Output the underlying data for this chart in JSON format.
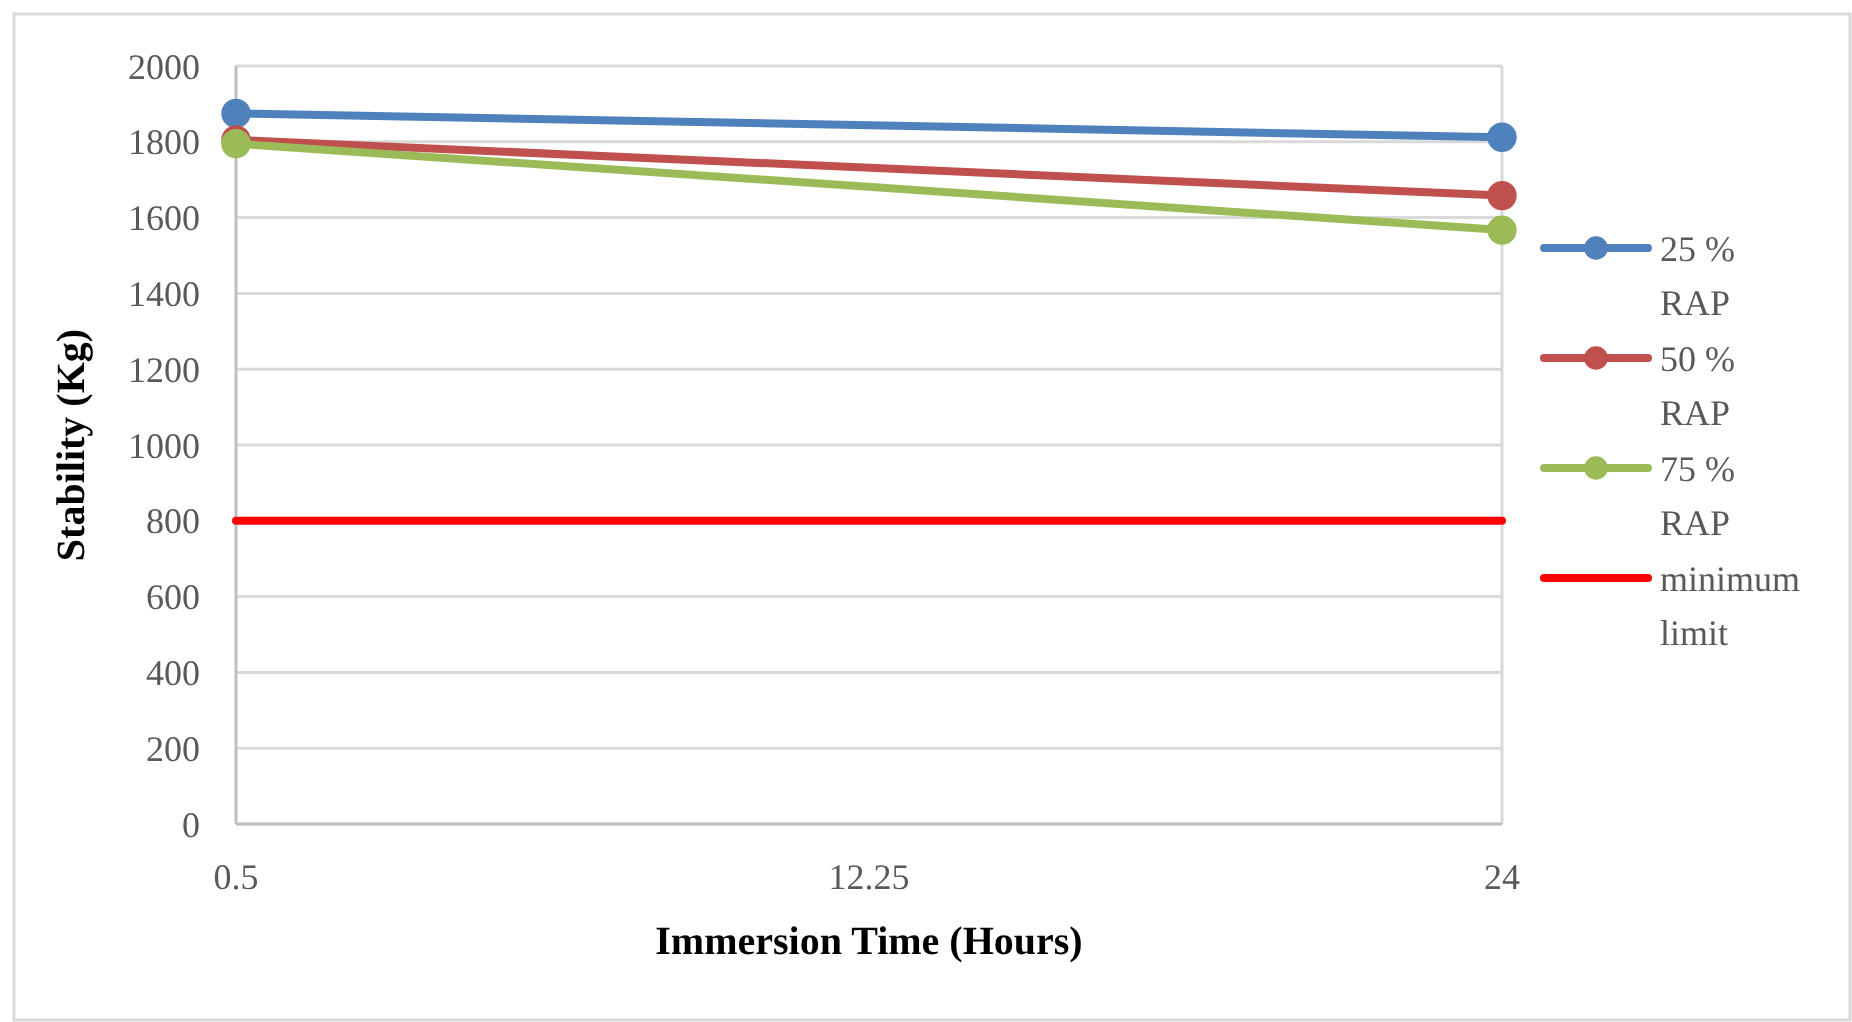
{
  "chart_data": {
    "type": "line",
    "xlabel": "Immersion Time (Hours)",
    "ylabel": "Stability (Kg)",
    "x": [
      0.5,
      24
    ],
    "xlim": [
      0.5,
      24
    ],
    "xticks": [
      0.5,
      12.25,
      24
    ],
    "ylim": [
      0,
      2000
    ],
    "yticks": [
      0,
      200,
      400,
      600,
      800,
      1000,
      1200,
      1400,
      1600,
      1800,
      2000
    ],
    "grid": "y",
    "legend": "right",
    "marker": "circle",
    "line_style": "solid",
    "series": [
      {
        "name": "25 % RAP",
        "color": "#4f81bd",
        "values": [
          1875,
          1812
        ]
      },
      {
        "name": "50 % RAP",
        "color": "#c0504d",
        "values": [
          1805,
          1658
        ]
      },
      {
        "name": "75 % RAP",
        "color": "#9bbb59",
        "values": [
          1795,
          1567
        ]
      },
      {
        "name": "minimum limit",
        "color": "#ff0000",
        "values": [
          800,
          800
        ],
        "marker": "none"
      }
    ]
  }
}
